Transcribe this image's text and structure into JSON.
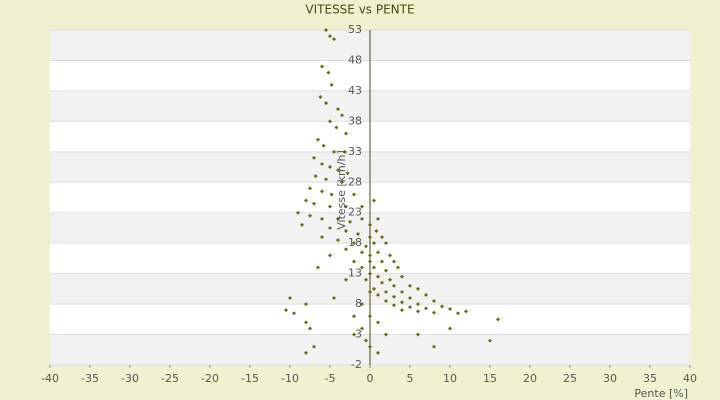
{
  "chart_data": {
    "type": "scatter",
    "title": "VITESSE vs PENTE",
    "x_label": "Pente [%]",
    "y_label": "Vitesse [km/h]",
    "xlim": [
      -40,
      40
    ],
    "xticks": [
      -40,
      -35,
      -30,
      -25,
      -20,
      -15,
      -10,
      -5,
      0,
      5,
      10,
      15,
      20,
      25,
      30,
      35,
      40
    ],
    "ylim": [
      -2,
      53
    ],
    "yticks": [
      -2,
      3,
      8,
      13,
      18,
      23,
      28,
      33,
      38,
      43,
      48,
      53
    ],
    "series": [
      {
        "color": "#6b6b10",
        "x": [
          -5.5,
          -5,
          -4.5,
          -6,
          -5.2,
          -4.8,
          -6.2,
          -5.5,
          -4,
          -3.5,
          -5,
          -4.2,
          -3,
          -6.5,
          -5.8,
          -4.5,
          -3.2,
          -7,
          -6,
          -5,
          -4,
          -2.8,
          -6.8,
          -5.5,
          -3.5,
          -7.5,
          -6,
          -4.8,
          -2,
          -8,
          -7,
          -5,
          -3,
          -1,
          0.5,
          -9,
          -7.5,
          -6,
          -4,
          -2.5,
          -1,
          0,
          1,
          -8.5,
          -5,
          -3,
          -1.5,
          0,
          0.8,
          1.5,
          -6,
          -4,
          -2,
          -0.5,
          0.5,
          2,
          -3,
          -1,
          0,
          1,
          2.5,
          -5,
          -2,
          0,
          1.5,
          3,
          -1,
          0.5,
          2,
          3.5,
          -6.5,
          0,
          1,
          2.5,
          4,
          -0.5,
          1.5,
          3,
          5,
          0.5,
          2,
          4,
          6,
          1,
          3,
          5,
          7,
          2,
          4,
          6,
          8,
          3,
          5,
          7,
          9,
          10,
          4,
          6,
          8,
          11,
          12,
          -10,
          -9.5,
          -8,
          -7.5,
          -10.5,
          -8,
          -2,
          -1,
          -2,
          0,
          -0.5,
          0,
          1,
          -7,
          -8,
          15,
          16,
          10,
          6,
          8,
          -4.5,
          -3,
          -1,
          0,
          1,
          2
        ],
        "values": [
          53,
          52,
          51.5,
          47,
          46,
          44,
          42,
          41,
          40,
          39,
          38,
          37,
          36,
          35,
          34,
          33,
          33,
          32,
          31,
          30.5,
          30,
          29.5,
          29,
          28.5,
          28,
          27,
          26.5,
          26,
          26,
          25,
          24.5,
          24,
          24,
          24,
          25,
          23,
          22.5,
          22,
          22,
          21.5,
          22,
          21,
          22,
          21,
          20.5,
          20,
          19.5,
          19,
          20,
          19,
          19,
          18.5,
          18,
          17.5,
          18,
          18,
          17,
          16.5,
          16,
          16.5,
          16,
          16,
          15,
          15,
          15,
          15,
          14,
          14,
          13.5,
          14,
          14,
          13,
          12.5,
          12,
          12.5,
          12,
          11.5,
          11,
          11,
          10.5,
          10,
          10,
          10.5,
          9.5,
          9.2,
          9,
          9.5,
          8.5,
          8.3,
          8,
          8.5,
          7.8,
          7.5,
          7.3,
          7.6,
          7.2,
          7,
          6.8,
          6.6,
          6.5,
          6.8,
          9,
          6.5,
          5,
          4,
          7,
          8,
          6,
          4,
          3,
          6,
          2,
          1,
          0,
          1,
          0,
          2,
          5.5,
          4,
          3,
          1,
          9,
          12,
          8,
          10,
          5,
          3
        ]
      }
    ],
    "grid": true
  }
}
